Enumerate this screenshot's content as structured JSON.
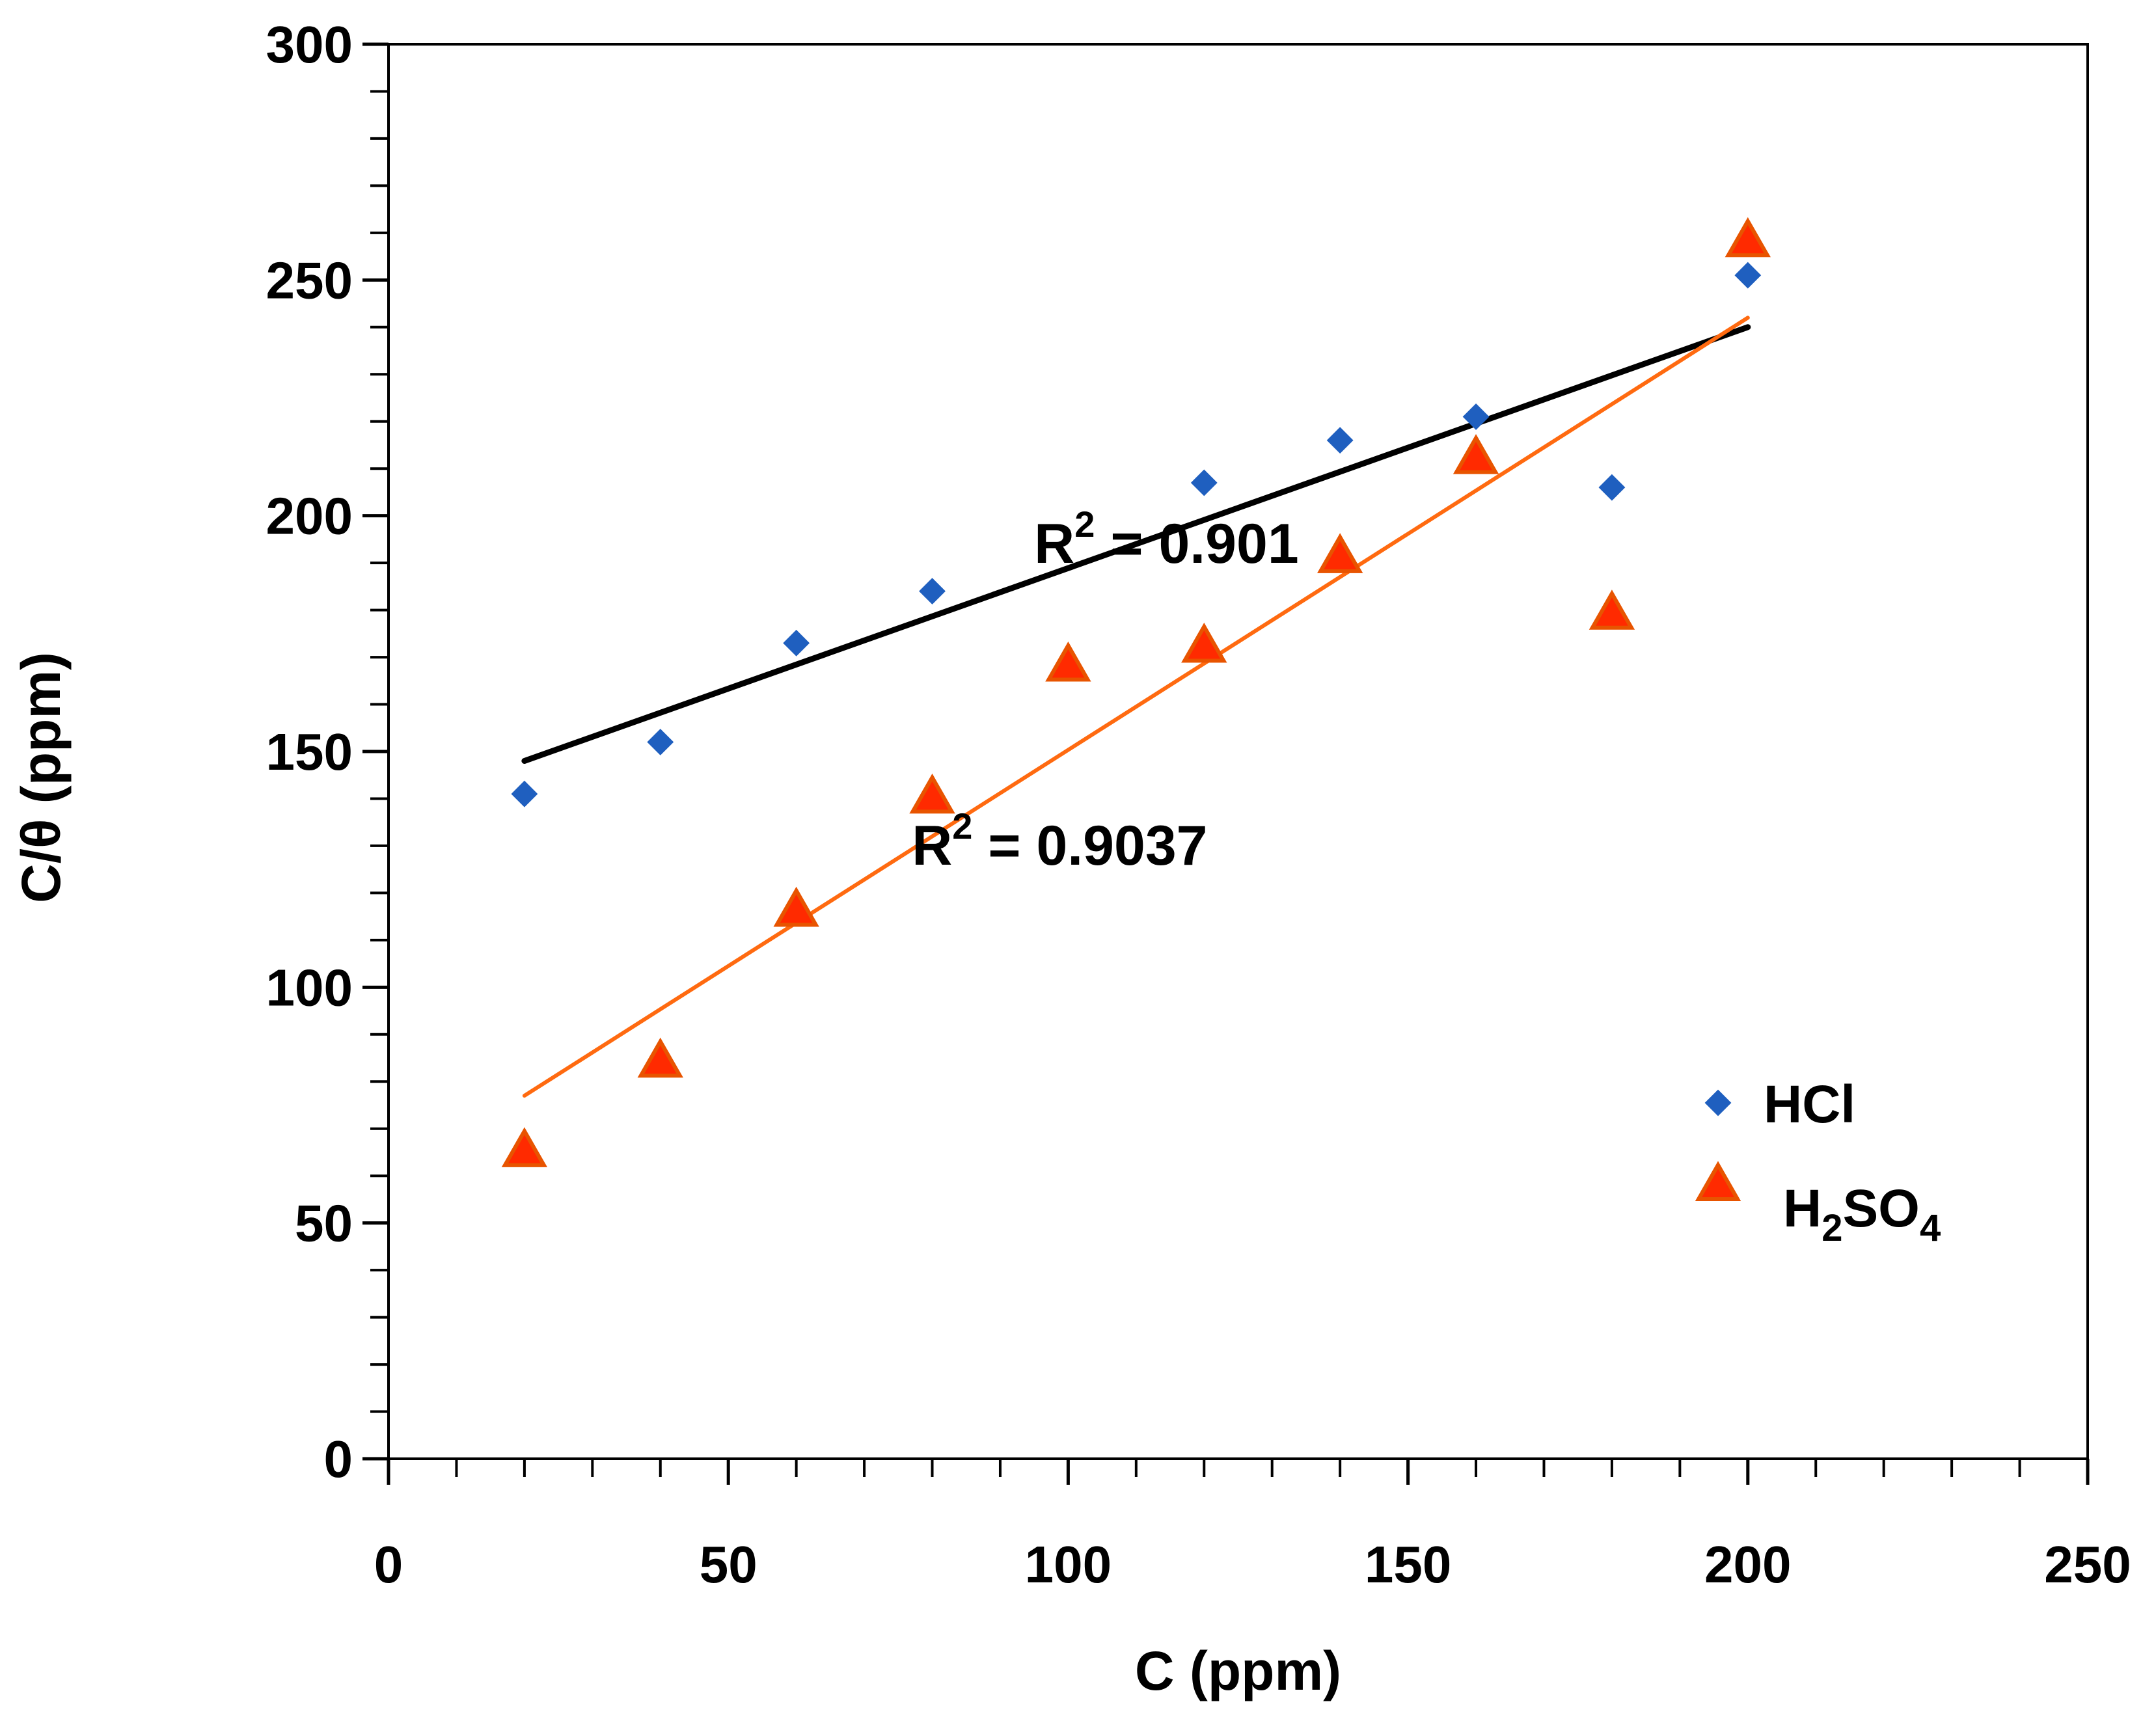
{
  "chart_data": {
    "type": "scatter",
    "title": "",
    "xlabel": "C (ppm)",
    "ylabel": "C/θ (ppm)",
    "xlim": [
      0,
      250
    ],
    "ylim": [
      0,
      300
    ],
    "x_ticks": [
      0,
      50,
      100,
      150,
      200,
      250
    ],
    "y_ticks": [
      0,
      50,
      100,
      150,
      200,
      250,
      300
    ],
    "x_tick_labels": [
      "0",
      "50",
      "100",
      "150",
      "200",
      "250"
    ],
    "y_tick_labels": [
      "0",
      "50",
      "100",
      "150",
      "200",
      "250",
      "300"
    ],
    "x_minor_step": 10,
    "y_minor_step": 10,
    "grid": false,
    "legend_position": "right-middle",
    "series": [
      {
        "name": "HCl",
        "legend_label": "HCl",
        "marker": "diamond",
        "color": "#1f5fbf",
        "x": [
          20,
          40,
          60,
          80,
          120,
          140,
          160,
          180,
          200
        ],
        "y": [
          141,
          152,
          173,
          184,
          207,
          216,
          221,
          206,
          251
        ],
        "trendline": {
          "x0": 20,
          "y0": 148,
          "x1": 200,
          "y1": 240,
          "color": "#000000"
        },
        "r2_label": {
          "prefix": "R",
          "sup": "2",
          "text": " = 0.901",
          "anchor_x": 95,
          "anchor_y": 190
        }
      },
      {
        "name": "H2SO4",
        "legend_label": {
          "base": "H",
          "sub1": "2",
          "mid": "SO",
          "sub2": "4"
        },
        "marker": "triangle",
        "color": "#ff2a00",
        "stroke": "#e85400",
        "x": [
          20,
          40,
          60,
          80,
          100,
          120,
          140,
          160,
          180,
          200
        ],
        "y": [
          65,
          84,
          116,
          140,
          168,
          172,
          191,
          212,
          179,
          258
        ],
        "trendline": {
          "x0": 20,
          "y0": 77,
          "x1": 200,
          "y1": 242,
          "color": "#ff6a10"
        },
        "r2_label": {
          "prefix": "R",
          "sup": "2",
          "text": " = 0.9037",
          "anchor_x": 77,
          "anchor_y": 126
        }
      }
    ]
  }
}
